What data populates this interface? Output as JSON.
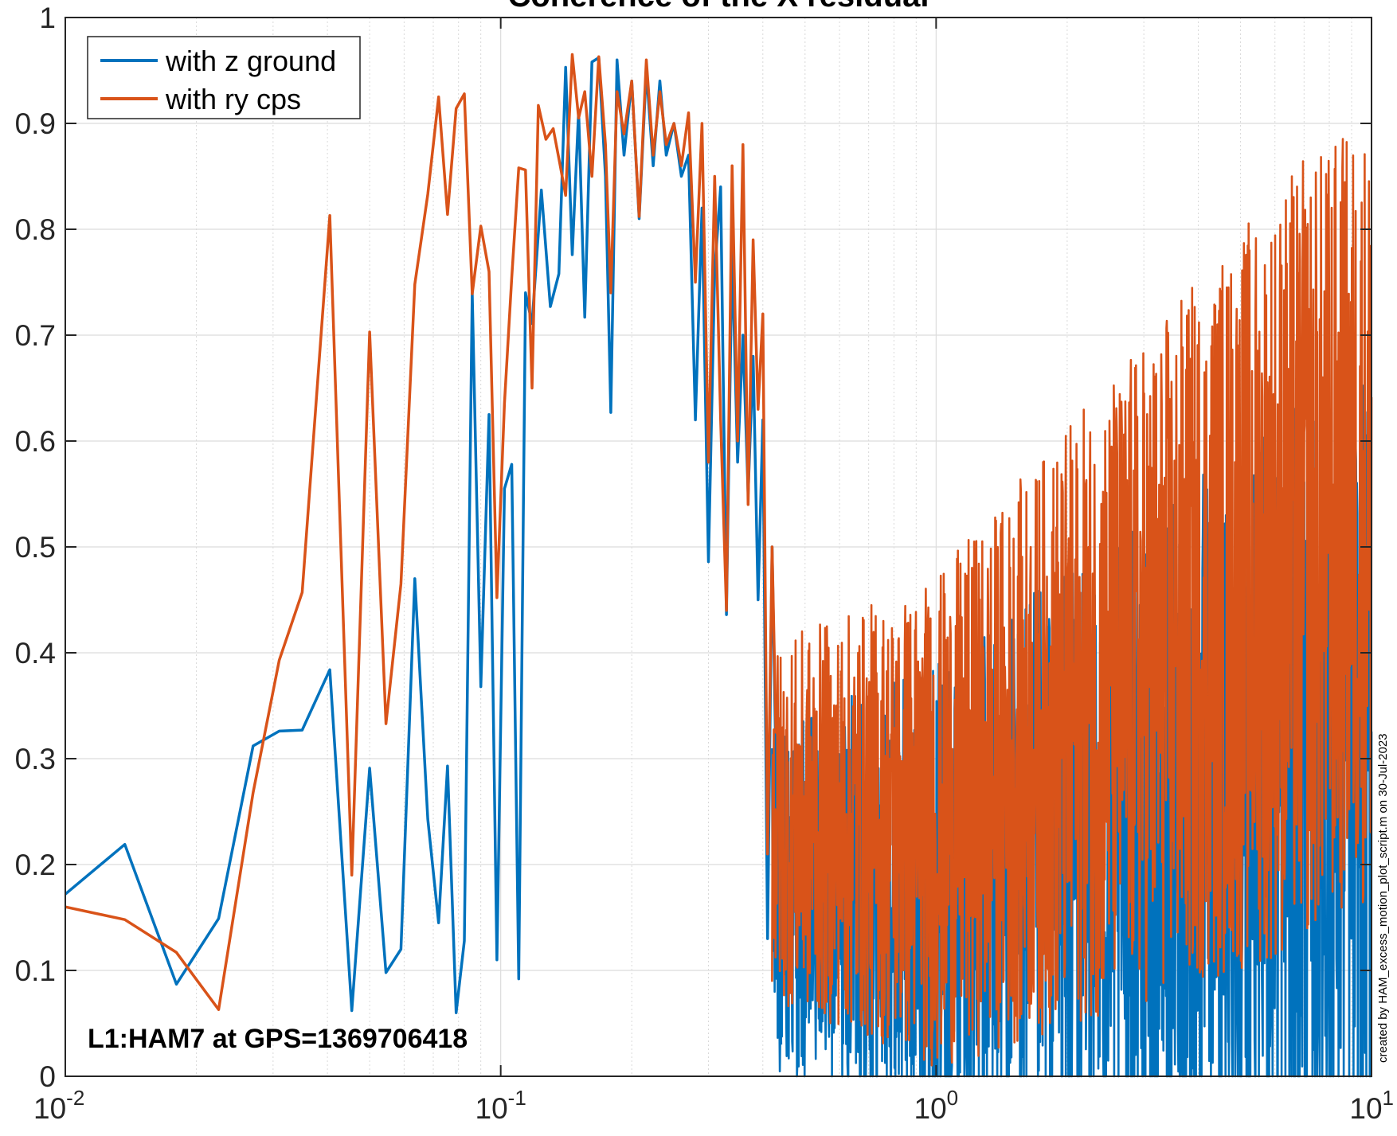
{
  "chart_data": {
    "type": "line",
    "title": "Coherence of the X residual",
    "xlabel": "",
    "ylabel": "",
    "xscale": "log",
    "xlim": [
      0.01,
      10
    ],
    "ylim": [
      0,
      1
    ],
    "x_ticks": [
      {
        "base": "10",
        "exp": "-2"
      },
      {
        "base": "10",
        "exp": "-1"
      },
      {
        "base": "10",
        "exp": "0"
      },
      {
        "base": "10",
        "exp": "1"
      }
    ],
    "y_ticks": [
      "0",
      "0.1",
      "0.2",
      "0.3",
      "0.4",
      "0.5",
      "0.6",
      "0.7",
      "0.8",
      "0.9",
      "1"
    ],
    "grid": true,
    "legend_position": "top-left",
    "annotation": "L1:HAM7 at GPS=1369706418",
    "side_note": "created by HAM_excess_motion_plot_script.m on 30-Jul-2023",
    "series": [
      {
        "name": "with z ground",
        "color": "#0072BD",
        "points": [
          [
            0.01,
            0.172
          ],
          [
            0.0137,
            0.219
          ],
          [
            0.018,
            0.087
          ],
          [
            0.0225,
            0.149
          ],
          [
            0.027,
            0.312
          ],
          [
            0.031,
            0.326
          ],
          [
            0.035,
            0.327
          ],
          [
            0.0405,
            0.384
          ],
          [
            0.0455,
            0.062
          ],
          [
            0.05,
            0.291
          ],
          [
            0.0545,
            0.098
          ],
          [
            0.059,
            0.12
          ],
          [
            0.0635,
            0.47
          ],
          [
            0.068,
            0.243
          ],
          [
            0.072,
            0.145
          ],
          [
            0.0755,
            0.293
          ],
          [
            0.079,
            0.06
          ],
          [
            0.0825,
            0.128
          ],
          [
            0.086,
            0.74
          ],
          [
            0.09,
            0.368
          ],
          [
            0.094,
            0.625
          ],
          [
            0.098,
            0.11
          ],
          [
            0.102,
            0.555
          ],
          [
            0.106,
            0.578
          ],
          [
            0.11,
            0.092
          ],
          [
            0.114,
            0.74
          ],
          [
            0.118,
            0.711
          ],
          [
            0.124,
            0.837
          ],
          [
            0.13,
            0.727
          ],
          [
            0.136,
            0.758
          ],
          [
            0.141,
            0.953
          ],
          [
            0.146,
            0.776
          ],
          [
            0.151,
            0.912
          ],
          [
            0.156,
            0.717
          ],
          [
            0.162,
            0.958
          ],
          [
            0.168,
            0.962
          ],
          [
            0.174,
            0.85
          ],
          [
            0.179,
            0.627
          ],
          [
            0.185,
            0.96
          ],
          [
            0.192,
            0.87
          ],
          [
            0.2,
            0.94
          ],
          [
            0.208,
            0.81
          ],
          [
            0.216,
            0.95
          ],
          [
            0.224,
            0.86
          ],
          [
            0.232,
            0.94
          ],
          [
            0.24,
            0.87
          ],
          [
            0.25,
            0.9
          ],
          [
            0.26,
            0.85
          ],
          [
            0.27,
            0.87
          ],
          [
            0.28,
            0.62
          ],
          [
            0.29,
            0.82
          ],
          [
            0.3,
            0.486
          ],
          [
            0.31,
            0.76
          ],
          [
            0.32,
            0.84
          ],
          [
            0.33,
            0.436
          ],
          [
            0.34,
            0.78
          ],
          [
            0.35,
            0.58
          ],
          [
            0.36,
            0.7
          ],
          [
            0.37,
            0.55
          ],
          [
            0.38,
            0.68
          ],
          [
            0.39,
            0.45
          ],
          [
            0.4,
            0.62
          ],
          [
            0.41,
            0.13
          ],
          [
            0.42,
            0.5
          ],
          [
            0.44,
            0.03
          ]
        ]
      },
      {
        "name": "with ry cps",
        "color": "#D95319",
        "points": [
          [
            0.01,
            0.16
          ],
          [
            0.0137,
            0.148
          ],
          [
            0.018,
            0.117
          ],
          [
            0.0225,
            0.063
          ],
          [
            0.027,
            0.268
          ],
          [
            0.031,
            0.393
          ],
          [
            0.035,
            0.457
          ],
          [
            0.0405,
            0.813
          ],
          [
            0.0455,
            0.19
          ],
          [
            0.05,
            0.703
          ],
          [
            0.0545,
            0.333
          ],
          [
            0.059,
            0.465
          ],
          [
            0.0635,
            0.748
          ],
          [
            0.068,
            0.833
          ],
          [
            0.072,
            0.925
          ],
          [
            0.0755,
            0.814
          ],
          [
            0.079,
            0.914
          ],
          [
            0.0825,
            0.928
          ],
          [
            0.086,
            0.739
          ],
          [
            0.09,
            0.803
          ],
          [
            0.094,
            0.76
          ],
          [
            0.098,
            0.452
          ],
          [
            0.102,
            0.636
          ],
          [
            0.106,
            0.754
          ],
          [
            0.11,
            0.858
          ],
          [
            0.114,
            0.856
          ],
          [
            0.118,
            0.65
          ],
          [
            0.122,
            0.917
          ],
          [
            0.127,
            0.885
          ],
          [
            0.132,
            0.895
          ],
          [
            0.137,
            0.86
          ],
          [
            0.141,
            0.832
          ],
          [
            0.146,
            0.965
          ],
          [
            0.151,
            0.905
          ],
          [
            0.156,
            0.93
          ],
          [
            0.162,
            0.85
          ],
          [
            0.168,
            0.963
          ],
          [
            0.174,
            0.88
          ],
          [
            0.179,
            0.74
          ],
          [
            0.185,
            0.93
          ],
          [
            0.192,
            0.89
          ],
          [
            0.2,
            0.94
          ],
          [
            0.208,
            0.812
          ],
          [
            0.216,
            0.96
          ],
          [
            0.224,
            0.87
          ],
          [
            0.232,
            0.93
          ],
          [
            0.24,
            0.88
          ],
          [
            0.25,
            0.9
          ],
          [
            0.26,
            0.86
          ],
          [
            0.27,
            0.91
          ],
          [
            0.28,
            0.75
          ],
          [
            0.29,
            0.9
          ],
          [
            0.3,
            0.58
          ],
          [
            0.31,
            0.85
          ],
          [
            0.32,
            0.62
          ],
          [
            0.33,
            0.44
          ],
          [
            0.34,
            0.86
          ],
          [
            0.35,
            0.6
          ],
          [
            0.36,
            0.88
          ],
          [
            0.37,
            0.54
          ],
          [
            0.38,
            0.79
          ],
          [
            0.39,
            0.63
          ],
          [
            0.4,
            0.72
          ],
          [
            0.41,
            0.21
          ],
          [
            0.42,
            0.5
          ],
          [
            0.44,
            0.1
          ]
        ]
      }
    ]
  }
}
